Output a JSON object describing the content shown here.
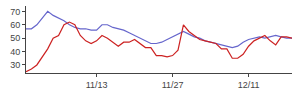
{
  "chart_data": {
    "type": "line",
    "categories": [
      null,
      null,
      null,
      null,
      null,
      null,
      null,
      null,
      null,
      null,
      null,
      null,
      null,
      "11/13",
      null,
      null,
      null,
      null,
      null,
      null,
      null,
      null,
      null,
      null,
      null,
      null,
      null,
      "11/27",
      null,
      null,
      null,
      null,
      null,
      null,
      null,
      null,
      null,
      null,
      null,
      null,
      null,
      "12/11",
      null,
      null,
      null,
      null,
      null,
      null,
      null,
      null
    ],
    "series": [
      {
        "color": "#6666cc",
        "values": [
          57,
          57,
          60,
          65,
          70,
          67,
          65,
          63,
          60,
          58,
          57,
          57,
          56,
          56,
          60,
          60,
          58,
          57,
          56,
          54,
          52,
          50,
          48,
          46,
          46,
          47,
          49,
          51,
          53,
          55,
          53,
          51,
          50,
          48,
          47,
          46,
          45,
          44,
          43,
          44,
          47,
          49,
          50,
          51,
          50,
          51,
          52,
          51,
          50,
          50
        ]
      },
      {
        "color": "#cc2222",
        "values": [
          25,
          27,
          30,
          36,
          42,
          50,
          52,
          60,
          62,
          60,
          52,
          48,
          46,
          48,
          52,
          50,
          47,
          44,
          47,
          47,
          49,
          46,
          43,
          43,
          37,
          37,
          36,
          37,
          41,
          60,
          55,
          52,
          49,
          48,
          47,
          46,
          42,
          42,
          35,
          35,
          38,
          44,
          48,
          50,
          52,
          48,
          45,
          51,
          51,
          50
        ]
      }
    ],
    "ylim": [
      24,
      74
    ],
    "yticks": [
      30,
      40,
      50,
      60,
      70
    ],
    "grid": false
  }
}
